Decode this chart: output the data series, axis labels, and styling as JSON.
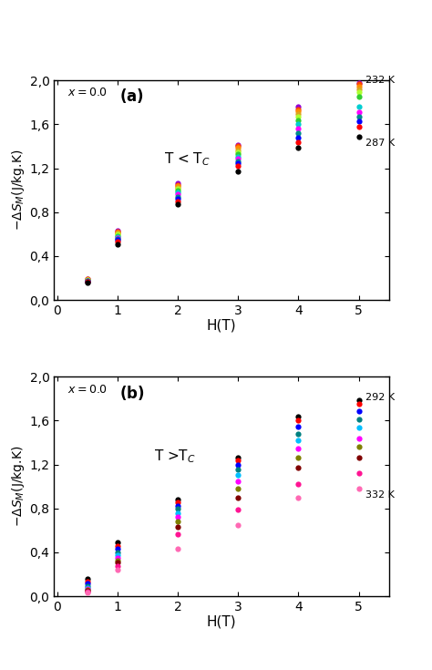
{
  "panel_a": {
    "label": "x = 0.0",
    "panel_letter": "(a)",
    "annotation": "T < T$_C$",
    "temp_start_label": "232 K",
    "temp_end_label": "287 K",
    "colors": [
      "#9400D3",
      "#FF4500",
      "#FF8C00",
      "#DAA520",
      "#ADFF2F",
      "#32CD32",
      "#00CED1",
      "#FF00FF",
      "#008B8B",
      "#0000FF",
      "#FF0000",
      "#000000"
    ],
    "H_values": [
      0.5,
      1.0,
      2.0,
      3.0,
      4.0,
      5.0
    ],
    "data": [
      [
        0.195,
        0.19,
        0.185,
        0.182,
        0.18,
        0.178,
        0.176,
        0.174,
        0.172,
        0.17,
        0.165,
        0.16
      ],
      [
        0.635,
        0.625,
        0.615,
        0.605,
        0.595,
        0.585,
        0.575,
        0.565,
        0.555,
        0.545,
        0.53,
        0.51
      ],
      [
        1.06,
        1.05,
        1.04,
        1.025,
        1.01,
        0.995,
        0.98,
        0.96,
        0.94,
        0.92,
        0.9,
        0.87
      ],
      [
        1.415,
        1.4,
        1.385,
        1.365,
        1.345,
        1.325,
        1.305,
        1.285,
        1.265,
        1.245,
        1.225,
        1.175
      ],
      [
        1.76,
        1.74,
        1.72,
        1.695,
        1.67,
        1.64,
        1.6,
        1.565,
        1.52,
        1.48,
        1.44,
        1.39
      ],
      [
        1.98,
        1.965,
        1.945,
        1.92,
        1.89,
        1.855,
        1.76,
        1.715,
        1.67,
        1.625,
        1.575,
        1.49
      ]
    ]
  },
  "panel_b": {
    "label": "x = 0.0",
    "panel_letter": "(b)",
    "annotation": "T >T$_C$",
    "temp_start_label": "292 K",
    "temp_end_label": "332 K",
    "colors": [
      "#000000",
      "#FF0000",
      "#0000FF",
      "#008080",
      "#00BFFF",
      "#FF00FF",
      "#808000",
      "#800000",
      "#FF1493",
      "#FF69B4"
    ],
    "H_values": [
      0.5,
      1.0,
      2.0,
      3.0,
      4.0,
      5.0
    ],
    "data": [
      [
        0.155,
        0.135,
        0.115,
        0.095,
        0.08,
        0.068,
        0.06,
        0.052,
        0.046,
        0.038
      ],
      [
        0.49,
        0.46,
        0.43,
        0.4,
        0.375,
        0.35,
        0.328,
        0.305,
        0.278,
        0.245
      ],
      [
        0.88,
        0.855,
        0.825,
        0.795,
        0.76,
        0.72,
        0.68,
        0.635,
        0.565,
        0.43
      ],
      [
        1.265,
        1.235,
        1.195,
        1.155,
        1.105,
        1.05,
        0.98,
        0.9,
        0.79,
        0.65
      ],
      [
        1.64,
        1.6,
        1.545,
        1.48,
        1.42,
        1.345,
        1.265,
        1.17,
        1.02,
        0.9
      ],
      [
        1.79,
        1.75,
        1.685,
        1.615,
        1.535,
        1.44,
        1.36,
        1.26,
        1.12,
        0.98
      ]
    ]
  },
  "ylim": [
    0.0,
    2.0
  ],
  "xlim": [
    -0.05,
    5.5
  ],
  "yticks": [
    0.0,
    0.4,
    0.8,
    1.2,
    1.6,
    2.0
  ],
  "xticks": [
    0,
    1,
    2,
    3,
    4,
    5
  ],
  "xlabel": "H(T)",
  "bg_color": "#ffffff",
  "markersize": 4.5
}
